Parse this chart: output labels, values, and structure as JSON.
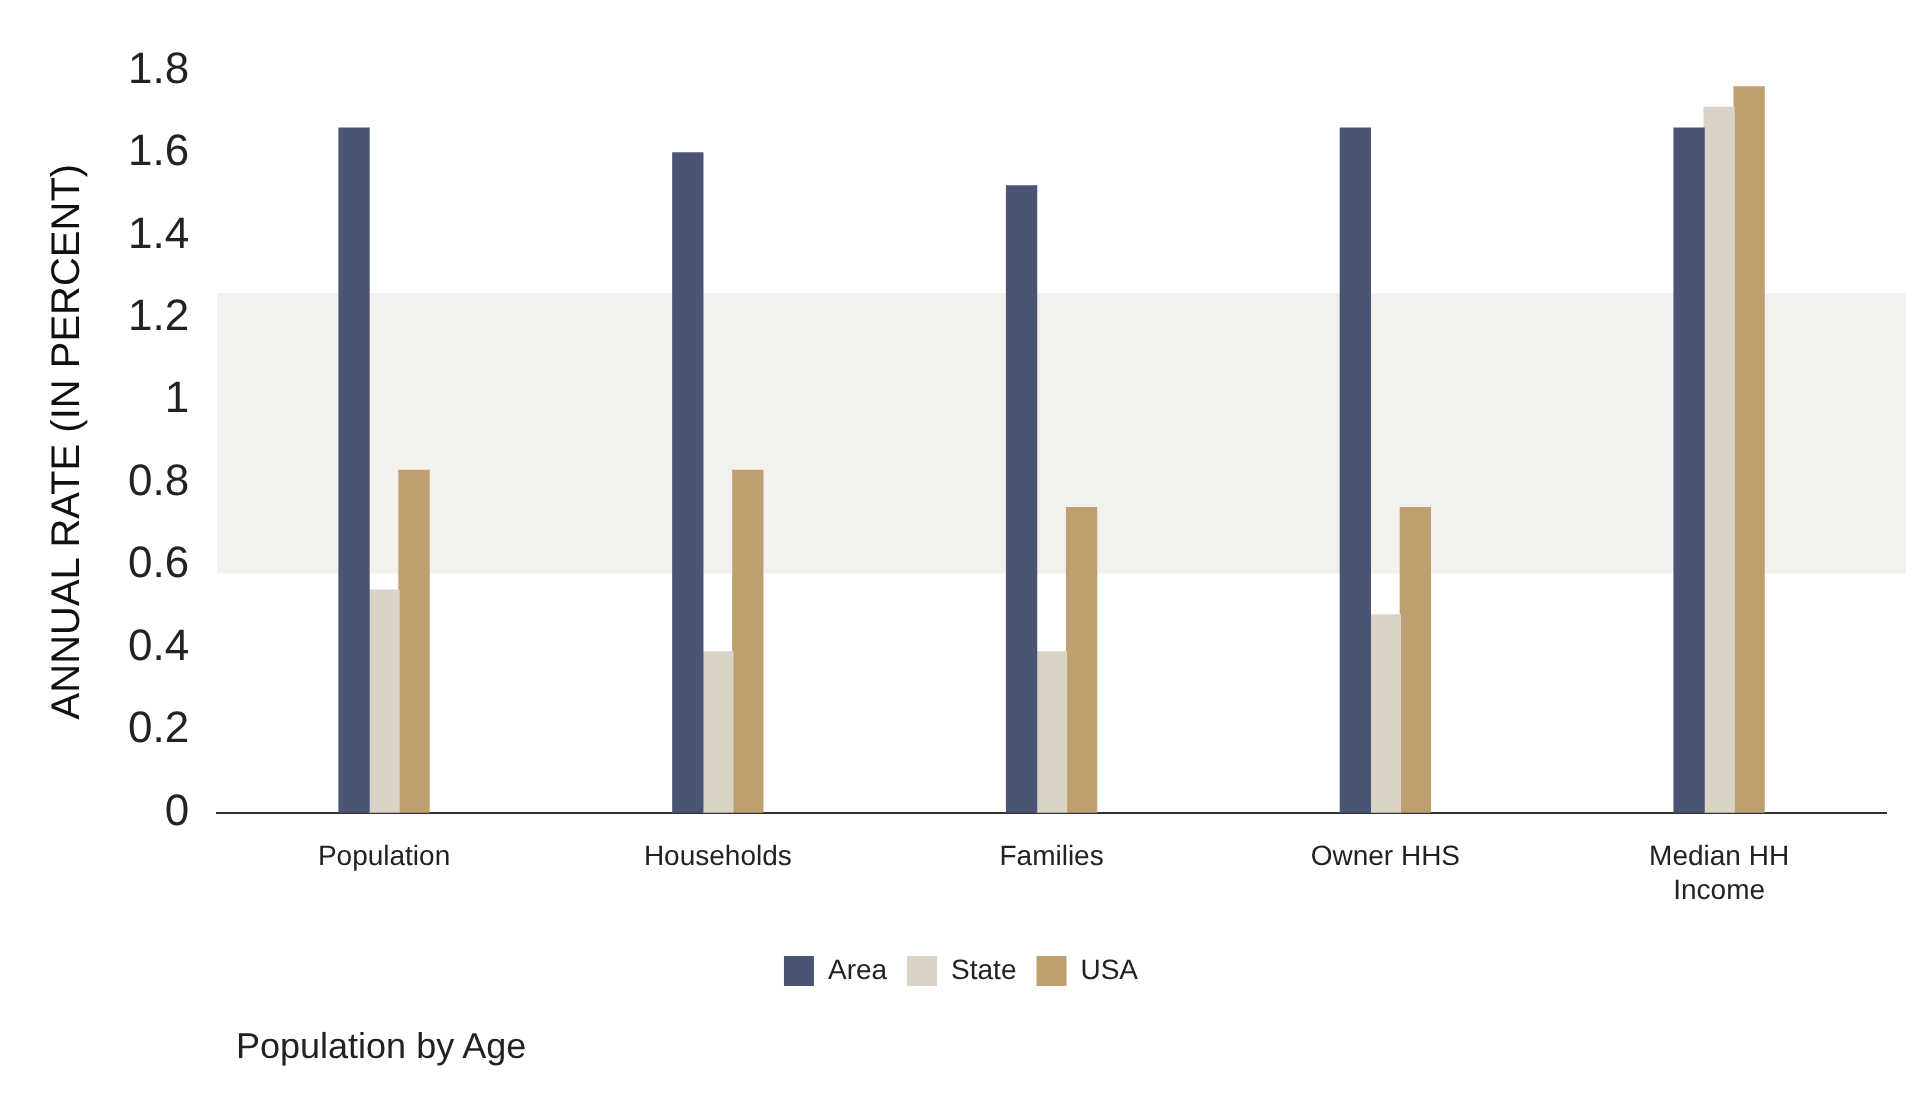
{
  "chart_data": {
    "type": "bar",
    "ylabel": "ANNUAL RATE (IN PERCENT)",
    "categories": [
      "Population",
      "Households",
      "Families",
      "Owner HHS",
      "Median HH Income"
    ],
    "series": [
      {
        "name": "Area",
        "color": "#4a5576",
        "values": [
          1.66,
          1.6,
          1.52,
          1.66,
          1.66
        ]
      },
      {
        "name": "State",
        "color": "#dad3c6",
        "values": [
          0.54,
          0.39,
          0.39,
          0.48,
          1.71
        ]
      },
      {
        "name": "USA",
        "color": "#be9f70",
        "values": [
          0.83,
          0.83,
          0.74,
          0.74,
          1.76
        ]
      }
    ],
    "ylim": [
      0,
      1.8
    ],
    "yticks": [
      0,
      0.2,
      0.4,
      0.6,
      0.8,
      1,
      1.2,
      1.4,
      1.6,
      1.8
    ],
    "bands": [
      {
        "axis": "y",
        "from": 0.58,
        "to": 1.26,
        "color": "#f3f1ee"
      }
    ],
    "grid": false,
    "legend": "bottom",
    "annotations": [
      "Population by Age"
    ]
  }
}
